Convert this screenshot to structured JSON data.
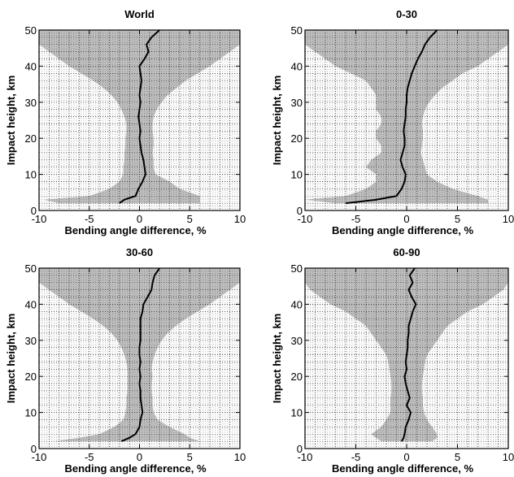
{
  "figure": {
    "background": "#ffffff",
    "envelope_color": "#c0c0c0",
    "grid_color": "#000000",
    "mean_color": "#000000"
  },
  "chart_data": [
    {
      "type": "line",
      "title": "World",
      "xlabel": "Bending angle difference, %",
      "ylabel": "Impact height, km",
      "xlim": [
        -10,
        10
      ],
      "ylim": [
        0,
        50
      ],
      "xticks": [
        "-10",
        "-5",
        "0",
        "5",
        "10"
      ],
      "yticks": [
        "0",
        "10",
        "20",
        "30",
        "40",
        "50"
      ],
      "grid": true,
      "series": [
        {
          "role": "spread",
          "y": [
            2,
            3,
            4,
            6,
            8,
            10,
            12,
            14,
            16,
            18,
            20,
            22,
            24,
            26,
            28,
            30,
            32,
            34,
            36,
            38,
            40,
            42,
            44,
            46,
            48,
            50
          ],
          "x_low": [
            -8,
            -9.5,
            -5,
            -3,
            -2,
            -1.6,
            -1.6,
            -1.5,
            -1.5,
            -1.4,
            -1.4,
            -1.3,
            -1.3,
            -1.5,
            -1.8,
            -2.2,
            -2.8,
            -3.6,
            -4.6,
            -5.8,
            -7,
            -8,
            -9,
            -10,
            -10,
            -10
          ],
          "x_high": [
            6,
            6,
            6,
            4,
            3,
            1.6,
            1.4,
            1.4,
            1.3,
            1.4,
            1.4,
            1.3,
            1.3,
            1.4,
            1.7,
            2.2,
            2.8,
            3.7,
            4.6,
            5.8,
            7,
            8,
            9,
            10,
            10,
            10
          ]
        },
        {
          "role": "mean",
          "y": [
            2,
            3,
            4,
            6,
            8,
            10,
            12,
            14,
            16,
            18,
            20,
            22,
            24,
            26,
            28,
            30,
            32,
            34,
            36,
            38,
            40,
            42,
            44,
            46,
            48,
            50
          ],
          "x": [
            -2,
            -1.5,
            -0.4,
            -0.1,
            0.3,
            0.6,
            0.5,
            0.4,
            0.2,
            0.1,
            0,
            0.1,
            0,
            -0.1,
            0,
            0.1,
            0,
            0.1,
            0.2,
            0.1,
            0,
            0.5,
            0.9,
            0.7,
            1.2,
            2
          ]
        }
      ]
    },
    {
      "type": "line",
      "title": "0-30",
      "xlabel": "Bending angle difference, %",
      "ylabel": "Impact height, km",
      "xlim": [
        -10,
        10
      ],
      "ylim": [
        0,
        50
      ],
      "xticks": [
        "-10",
        "-5",
        "0",
        "5",
        "10"
      ],
      "yticks": [
        "0",
        "10",
        "20",
        "30",
        "40",
        "50"
      ],
      "grid": true,
      "series": [
        {
          "role": "spread",
          "y": [
            2,
            3,
            4,
            6,
            8,
            10,
            12,
            14,
            16,
            18,
            20,
            22,
            24,
            26,
            28,
            30,
            32,
            34,
            36,
            38,
            40,
            42,
            44,
            46,
            48,
            50
          ],
          "x_low": [
            -7,
            -10,
            -6,
            -4,
            -3,
            -3,
            -4,
            -3.5,
            -2.5,
            -2.5,
            -3,
            -3,
            -2.5,
            -2.5,
            -3,
            -3,
            -3,
            -3.5,
            -4,
            -5.5,
            -7,
            -8,
            -9,
            -10,
            -10,
            -10
          ],
          "x_high": [
            8,
            8,
            7,
            4.5,
            3,
            2,
            1.8,
            1.6,
            1.4,
            1.5,
            1.6,
            1.6,
            1.5,
            1.6,
            1.8,
            2.2,
            2.8,
            3.5,
            4.5,
            5.5,
            7,
            8,
            9,
            10,
            10,
            10
          ]
        },
        {
          "role": "mean",
          "y": [
            2,
            3,
            4,
            6,
            8,
            10,
            12,
            14,
            16,
            18,
            20,
            22,
            24,
            26,
            28,
            30,
            32,
            34,
            36,
            38,
            40,
            42,
            44,
            46,
            48,
            50
          ],
          "x": [
            -6,
            -3,
            -1,
            -0.5,
            -0.2,
            -0.1,
            -0.4,
            -0.6,
            -0.4,
            -0.2,
            -0.2,
            -0.3,
            -0.2,
            -0.1,
            -0.1,
            0,
            0,
            0.1,
            0.3,
            0.5,
            0.8,
            1.1,
            1.5,
            1.8,
            2.3,
            3
          ]
        }
      ]
    },
    {
      "type": "line",
      "title": "30-60",
      "xlabel": "Bending angle difference, %",
      "ylabel": "Impact height, km",
      "xlim": [
        -10,
        10
      ],
      "ylim": [
        0,
        50
      ],
      "xticks": [
        "-10",
        "-5",
        "0",
        "5",
        "10"
      ],
      "yticks": [
        "0",
        "10",
        "20",
        "30",
        "40",
        "50"
      ],
      "grid": true,
      "series": [
        {
          "role": "spread",
          "y": [
            2,
            3,
            4,
            6,
            8,
            10,
            12,
            14,
            16,
            18,
            20,
            22,
            24,
            26,
            28,
            30,
            32,
            34,
            36,
            38,
            40,
            42,
            44,
            46,
            48,
            50
          ],
          "x_low": [
            -8.5,
            -6,
            -4,
            -2.5,
            -1.6,
            -1.4,
            -1.3,
            -1.3,
            -1.2,
            -1.2,
            -1.2,
            -1.2,
            -1.3,
            -1.5,
            -1.8,
            -2.2,
            -2.8,
            -3.6,
            -4.6,
            -5.8,
            -7,
            -8,
            -9,
            -10,
            -10,
            -10
          ],
          "x_high": [
            6,
            5,
            4.5,
            3,
            1.8,
            1.4,
            1.3,
            1.3,
            1.2,
            1.2,
            1.3,
            1.2,
            1.3,
            1.5,
            1.8,
            2.2,
            2.8,
            3.6,
            4.6,
            5.8,
            7,
            8,
            9,
            10,
            10,
            10
          ]
        },
        {
          "role": "mean",
          "y": [
            2,
            3,
            4,
            6,
            8,
            10,
            12,
            14,
            16,
            18,
            20,
            22,
            24,
            26,
            28,
            30,
            32,
            34,
            36,
            38,
            40,
            42,
            44,
            46,
            48,
            50
          ],
          "x": [
            -1.8,
            -1,
            -0.4,
            0,
            0.1,
            0.3,
            0.2,
            0.1,
            0.1,
            0,
            0.1,
            0,
            0.1,
            0,
            0,
            0.1,
            0.1,
            0.1,
            0.1,
            0.3,
            0.4,
            0.8,
            1.2,
            1.3,
            1.5,
            2
          ]
        }
      ]
    },
    {
      "type": "line",
      "title": "60-90",
      "xlabel": "Bending angle difference, %",
      "ylabel": "Impact height, km",
      "xlim": [
        -10,
        10
      ],
      "ylim": [
        0,
        50
      ],
      "xticks": [
        "-10",
        "-5",
        "0",
        "5",
        "10"
      ],
      "yticks": [
        "0",
        "10",
        "20",
        "30",
        "40",
        "50"
      ],
      "grid": true,
      "series": [
        {
          "role": "spread",
          "y": [
            2,
            3,
            4,
            6,
            8,
            10,
            12,
            14,
            16,
            18,
            20,
            22,
            24,
            26,
            28,
            30,
            32,
            34,
            36,
            38,
            40,
            42,
            44,
            46,
            48,
            50
          ],
          "x_low": [
            -2.5,
            -3,
            -3.5,
            -2.5,
            -2,
            -1.6,
            -1.6,
            -1.6,
            -1.5,
            -1.5,
            -1.6,
            -1.7,
            -1.8,
            -2,
            -2.5,
            -3,
            -3.5,
            -4,
            -5,
            -6,
            -7.5,
            -8.5,
            -9.5,
            -10,
            -10,
            -10
          ],
          "x_high": [
            2.5,
            3,
            3,
            2.5,
            2,
            1.7,
            1.6,
            1.6,
            1.5,
            1.5,
            1.6,
            1.7,
            1.8,
            2,
            2.5,
            3,
            3.5,
            4,
            5,
            6,
            7.5,
            8.5,
            9.5,
            10,
            10,
            10
          ]
        },
        {
          "role": "mean",
          "y": [
            2,
            3,
            4,
            6,
            8,
            10,
            12,
            14,
            16,
            18,
            20,
            22,
            24,
            26,
            28,
            30,
            32,
            34,
            36,
            38,
            40,
            42,
            44,
            46,
            48,
            50
          ],
          "x": [
            -0.5,
            -0.3,
            -0.2,
            -0.1,
            0.2,
            0.4,
            0,
            0.3,
            0.1,
            -0.1,
            -0.2,
            0,
            -0.1,
            0,
            0.1,
            0.1,
            0.2,
            0.2,
            0.4,
            0.6,
            0.9,
            0.5,
            0.2,
            0.6,
            0.3,
            0.8
          ]
        }
      ]
    }
  ]
}
